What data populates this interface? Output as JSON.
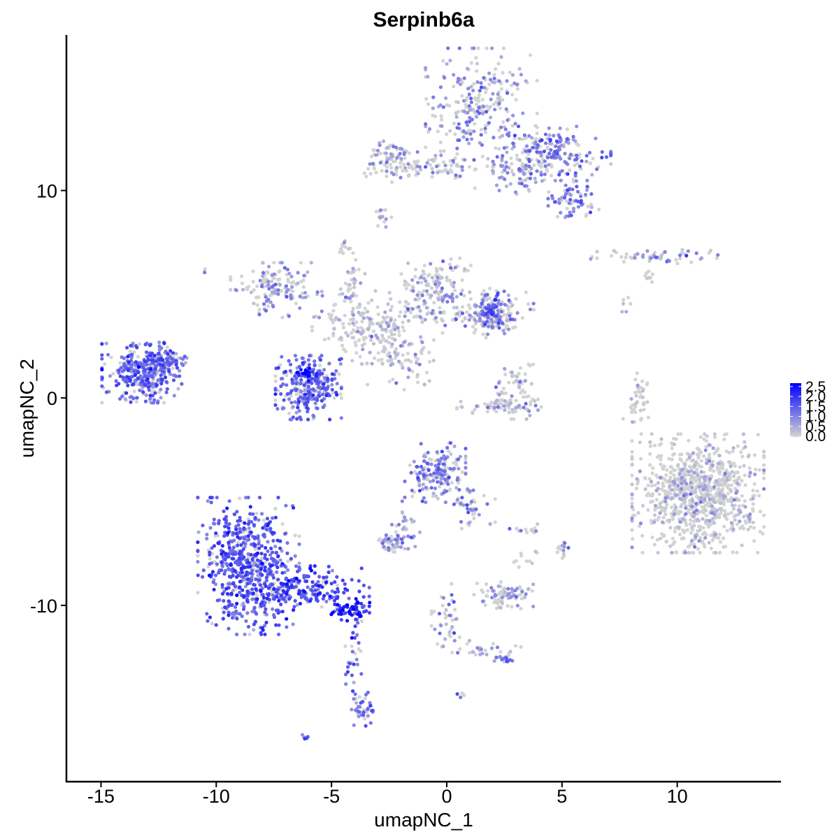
{
  "chart_data": {
    "type": "scatter",
    "title": "Serpinb6a",
    "xlabel": "umapNC_1",
    "ylabel": "umapNC_2",
    "xlim": [
      -16.5,
      14.5
    ],
    "ylim": [
      -18.5,
      17.5
    ],
    "xticks": [
      -15,
      -10,
      -5,
      0,
      5,
      10
    ],
    "xtick_labels": [
      "-15",
      "-10",
      "-5",
      "0",
      "5",
      "10"
    ],
    "yticks": [
      -10,
      0,
      10
    ],
    "ytick_labels": [
      "-10",
      "0",
      "10"
    ],
    "grid": false,
    "legend_position": "right",
    "color_scale": {
      "low_color": "#d3d3d3",
      "high_color": "#0000ff",
      "min": 0,
      "max": 2.6,
      "breaks": [
        0,
        0.5,
        1,
        1.5,
        2,
        2.5
      ],
      "labels": [
        "0.0",
        "0.5",
        "1.0",
        "1.5",
        "2.0",
        "2.5"
      ]
    },
    "clusters": [
      {
        "cx": 1.5,
        "cy": 14.0,
        "sx": 1.1,
        "sy": 1.3,
        "n": 260,
        "expr": 0.85
      },
      {
        "cx": 4.7,
        "cy": 11.8,
        "sx": 1.1,
        "sy": 0.6,
        "n": 170,
        "expr": 1.05
      },
      {
        "cx": 3.2,
        "cy": 10.8,
        "sx": 0.9,
        "sy": 0.6,
        "n": 90,
        "expr": 0.6
      },
      {
        "cx": 5.5,
        "cy": 9.7,
        "sx": 0.5,
        "sy": 0.45,
        "n": 70,
        "expr": 1.1
      },
      {
        "cx": -2.5,
        "cy": 11.5,
        "sx": 0.5,
        "sy": 0.5,
        "n": 80,
        "expr": 0.7
      },
      {
        "cx": -0.5,
        "cy": 11.2,
        "sx": 1.2,
        "sy": 0.3,
        "n": 60,
        "expr": 0.5
      },
      {
        "cx": -2.8,
        "cy": 8.7,
        "sx": 0.2,
        "sy": 0.3,
        "n": 15,
        "expr": 0.5
      },
      {
        "cx": -4.4,
        "cy": 7.3,
        "sx": 0.15,
        "sy": 0.2,
        "n": 10,
        "expr": 0.5
      },
      {
        "cx": 8.9,
        "cy": 6.8,
        "sx": 1.3,
        "sy": 0.2,
        "n": 60,
        "expr": 0.7
      },
      {
        "cx": 8.7,
        "cy": 6.0,
        "sx": 0.2,
        "sy": 0.2,
        "n": 8,
        "expr": 0.4
      },
      {
        "cx": 7.7,
        "cy": 4.6,
        "sx": 0.15,
        "sy": 0.2,
        "n": 6,
        "expr": 0.1
      },
      {
        "cx": -7.4,
        "cy": 5.2,
        "sx": 0.9,
        "sy": 0.6,
        "n": 140,
        "expr": 0.75
      },
      {
        "cx": -3.2,
        "cy": 3.4,
        "sx": 1.2,
        "sy": 0.8,
        "n": 220,
        "expr": 0.3
      },
      {
        "cx": -0.5,
        "cy": 5.2,
        "sx": 0.7,
        "sy": 0.7,
        "n": 160,
        "expr": 0.6
      },
      {
        "cx": 1.8,
        "cy": 4.0,
        "sx": 0.9,
        "sy": 0.5,
        "n": 150,
        "expr": 0.7
      },
      {
        "cx": 2.0,
        "cy": 4.3,
        "sx": 0.35,
        "sy": 0.45,
        "n": 80,
        "expr": 1.2
      },
      {
        "cx": -4.1,
        "cy": 5.5,
        "sx": 0.25,
        "sy": 0.8,
        "n": 40,
        "expr": 0.3
      },
      {
        "cx": -1.9,
        "cy": 1.5,
        "sx": 0.7,
        "sy": 0.5,
        "n": 45,
        "expr": 0.3
      },
      {
        "cx": -6.0,
        "cy": 0.5,
        "sx": 0.65,
        "sy": 0.7,
        "n": 280,
        "expr": 1.3
      },
      {
        "cx": -6.2,
        "cy": 1.2,
        "sx": 0.15,
        "sy": 0.15,
        "n": 14,
        "expr": 2.3
      },
      {
        "cx": -13.2,
        "cy": 1.2,
        "sx": 0.8,
        "sy": 0.65,
        "n": 330,
        "expr": 1.3
      },
      {
        "cx": -12.3,
        "cy": 1.8,
        "sx": 0.5,
        "sy": 0.4,
        "n": 60,
        "expr": 1.2
      },
      {
        "cx": 3.0,
        "cy": 0.3,
        "sx": 0.5,
        "sy": 0.6,
        "n": 70,
        "expr": 0.5
      },
      {
        "cx": 2.2,
        "cy": -0.4,
        "sx": 0.8,
        "sy": 0.15,
        "n": 50,
        "expr": 0.4
      },
      {
        "cx": 8.2,
        "cy": -0.1,
        "sx": 0.25,
        "sy": 0.6,
        "n": 40,
        "expr": 0.1
      },
      {
        "cx": 10.9,
        "cy": -4.6,
        "sx": 1.3,
        "sy": 1.3,
        "n": 900,
        "expr": 0.3
      },
      {
        "cx": -0.5,
        "cy": -3.6,
        "sx": 0.6,
        "sy": 0.65,
        "n": 170,
        "expr": 1.0
      },
      {
        "cx": 1.0,
        "cy": -5.2,
        "sx": 0.5,
        "sy": 0.5,
        "n": 45,
        "expr": 0.9
      },
      {
        "cx": -1.9,
        "cy": -6.1,
        "sx": 0.35,
        "sy": 0.6,
        "n": 30,
        "expr": 0.8
      },
      {
        "cx": -2.4,
        "cy": -6.9,
        "sx": 0.35,
        "sy": 0.2,
        "n": 50,
        "expr": 0.8
      },
      {
        "cx": 2.5,
        "cy": -9.5,
        "sx": 0.6,
        "sy": 0.3,
        "n": 90,
        "expr": 0.6
      },
      {
        "cx": 5.0,
        "cy": -7.4,
        "sx": 0.15,
        "sy": 0.25,
        "n": 15,
        "expr": 0.8
      },
      {
        "cx": 3.5,
        "cy": -6.3,
        "sx": 0.4,
        "sy": 0.1,
        "n": 12,
        "expr": 0.6
      },
      {
        "cx": 3.3,
        "cy": -7.8,
        "sx": 0.3,
        "sy": 0.3,
        "n": 10,
        "expr": 0.2
      },
      {
        "cx": -8.6,
        "cy": -8.1,
        "sx": 1.0,
        "sy": 1.5,
        "n": 620,
        "expr": 1.45
      },
      {
        "cx": -6.0,
        "cy": -9.2,
        "sx": 1.2,
        "sy": 0.5,
        "n": 180,
        "expr": 1.6
      },
      {
        "cx": -4.2,
        "cy": -10.2,
        "sx": 0.45,
        "sy": 0.25,
        "n": 60,
        "expr": 2.1
      },
      {
        "cx": -4.0,
        "cy": -12.3,
        "sx": 0.18,
        "sy": 0.9,
        "n": 30,
        "expr": 1.4
      },
      {
        "cx": -3.6,
        "cy": -15.0,
        "sx": 0.25,
        "sy": 0.5,
        "n": 40,
        "expr": 1.3
      },
      {
        "cx": 0.0,
        "cy": -10.7,
        "sx": 0.3,
        "sy": 0.8,
        "n": 40,
        "expr": 0.9
      },
      {
        "cx": 1.6,
        "cy": -12.1,
        "sx": 0.8,
        "sy": 0.2,
        "n": 30,
        "expr": 0.7
      },
      {
        "cx": 2.5,
        "cy": -12.6,
        "sx": 0.2,
        "sy": 0.2,
        "n": 15,
        "expr": 1.0
      },
      {
        "cx": 0.6,
        "cy": -14.3,
        "sx": 0.1,
        "sy": 0.1,
        "n": 5,
        "expr": 1.2
      },
      {
        "cx": -6.0,
        "cy": -16.3,
        "sx": 0.12,
        "sy": 0.1,
        "n": 6,
        "expr": 1.2
      },
      {
        "cx": -10.5,
        "cy": 6.1,
        "sx": 0.05,
        "sy": 0.05,
        "n": 3,
        "expr": 1.2
      }
    ]
  }
}
